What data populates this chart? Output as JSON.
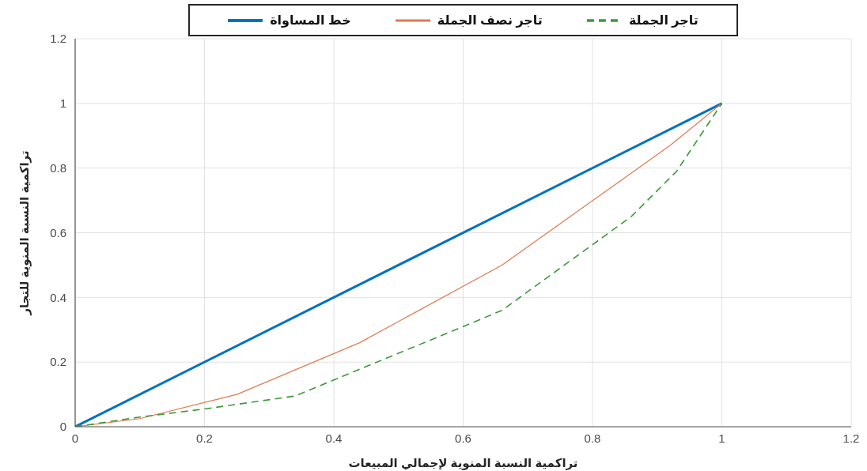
{
  "chart_data": {
    "type": "line",
    "xlabel": "تراكمية النسبة المنوية لإجمالي المبيعات",
    "ylabel": "تراكمية النسبة المنوية للتجار",
    "xlim": [
      0,
      1.2
    ],
    "xticks": [
      0,
      0.2,
      0.4,
      0.6,
      0.8,
      1,
      1.2
    ],
    "ylim": [
      0,
      1.2
    ],
    "yticks": [
      0,
      0.2,
      0.4,
      0.6,
      0.8,
      1,
      1.2
    ],
    "grid": true,
    "legend": "top",
    "marker": "none",
    "series": [
      {
        "name": "خط المساواة",
        "color": "#0072bd",
        "line_style": "solid",
        "x": [
          0,
          1
        ],
        "values": [
          0,
          1
        ]
      },
      {
        "name": "تاجر نصف الجملة",
        "color": "#e07a50",
        "line_style": "solid",
        "x": [
          0,
          0.1,
          0.25,
          0.44,
          0.66,
          0.92,
          1
        ],
        "values": [
          0,
          0.025,
          0.1,
          0.26,
          0.5,
          0.87,
          1
        ]
      },
      {
        "name": "تاجر الجملة",
        "color": "#3a9a3a",
        "line_style": "dashed",
        "x": [
          0,
          0.1,
          0.2,
          0.34,
          0.6,
          0.66,
          0.86,
          0.93,
          1
        ],
        "values": [
          0,
          0.03,
          0.055,
          0.095,
          0.31,
          0.36,
          0.65,
          0.79,
          1
        ]
      }
    ]
  }
}
